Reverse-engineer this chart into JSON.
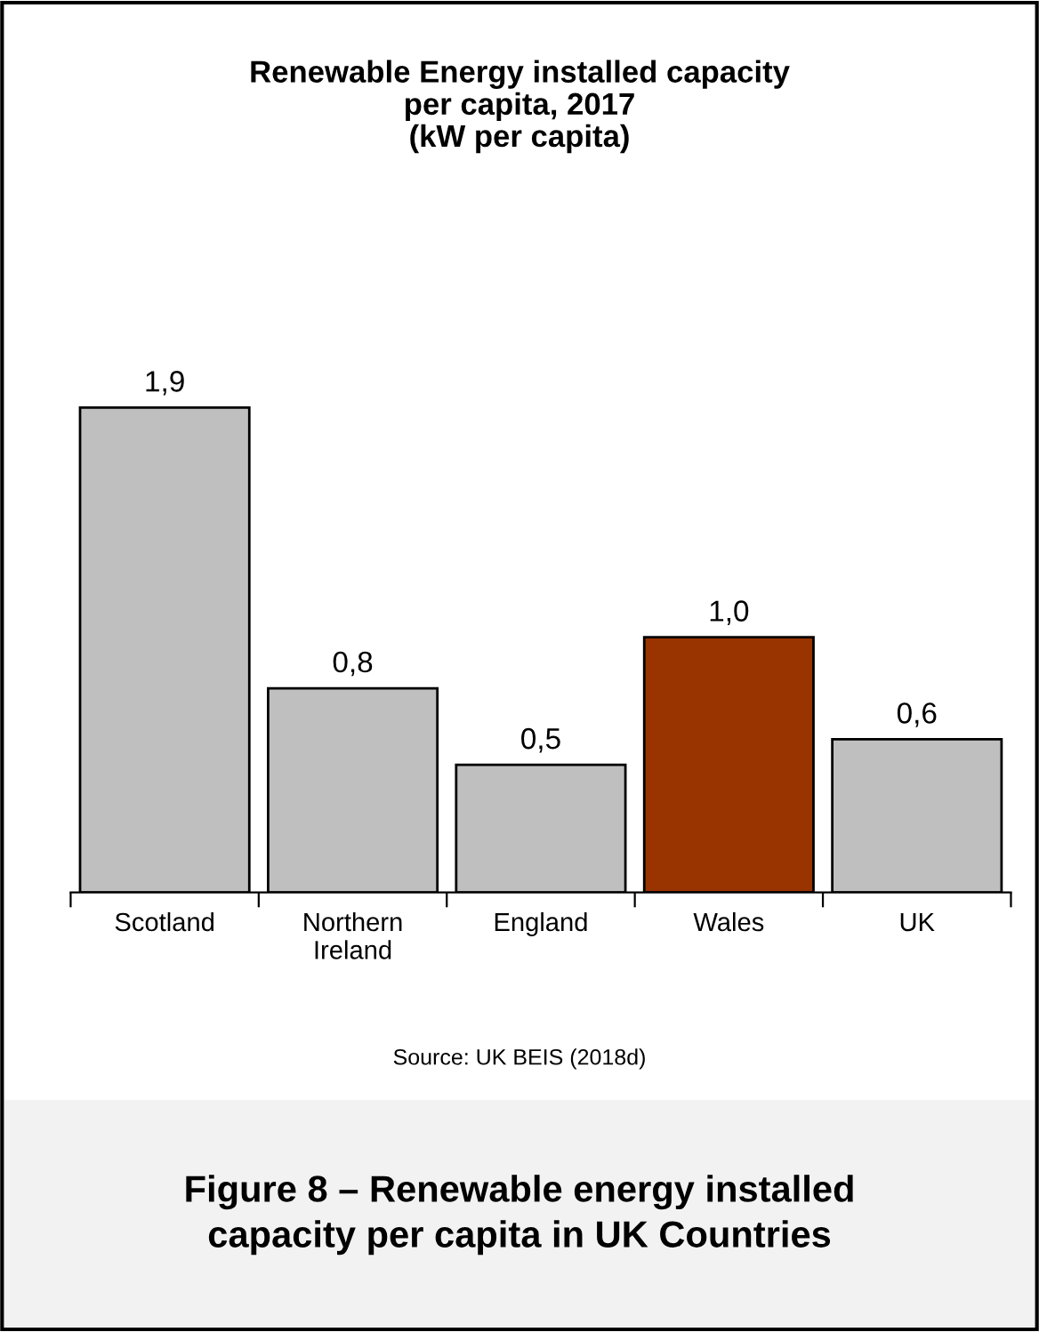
{
  "chart_data": {
    "type": "bar",
    "title": "Renewable Energy installed capacity\nper capita, 2017\n(kW per capita)",
    "categories": [
      "Scotland",
      "Northern\nIreland",
      "England",
      "Wales",
      "UK"
    ],
    "values": [
      1.9,
      0.8,
      0.5,
      1.0,
      0.6
    ],
    "colors": [
      "#bfbfbf",
      "#bfbfbf",
      "#bfbfbf",
      "#993300",
      "#bfbfbf"
    ],
    "value_labels": [
      "1,9",
      "0,8",
      "0,5",
      "1,0",
      "0,6"
    ],
    "tick_labels": "x",
    "grid": false,
    "legend": false,
    "annotations": [
      "Source: UK BEIS (2018d)",
      "Figure 8 – Renewable energy installed\ncapacity per capita in UK Countries"
    ]
  }
}
